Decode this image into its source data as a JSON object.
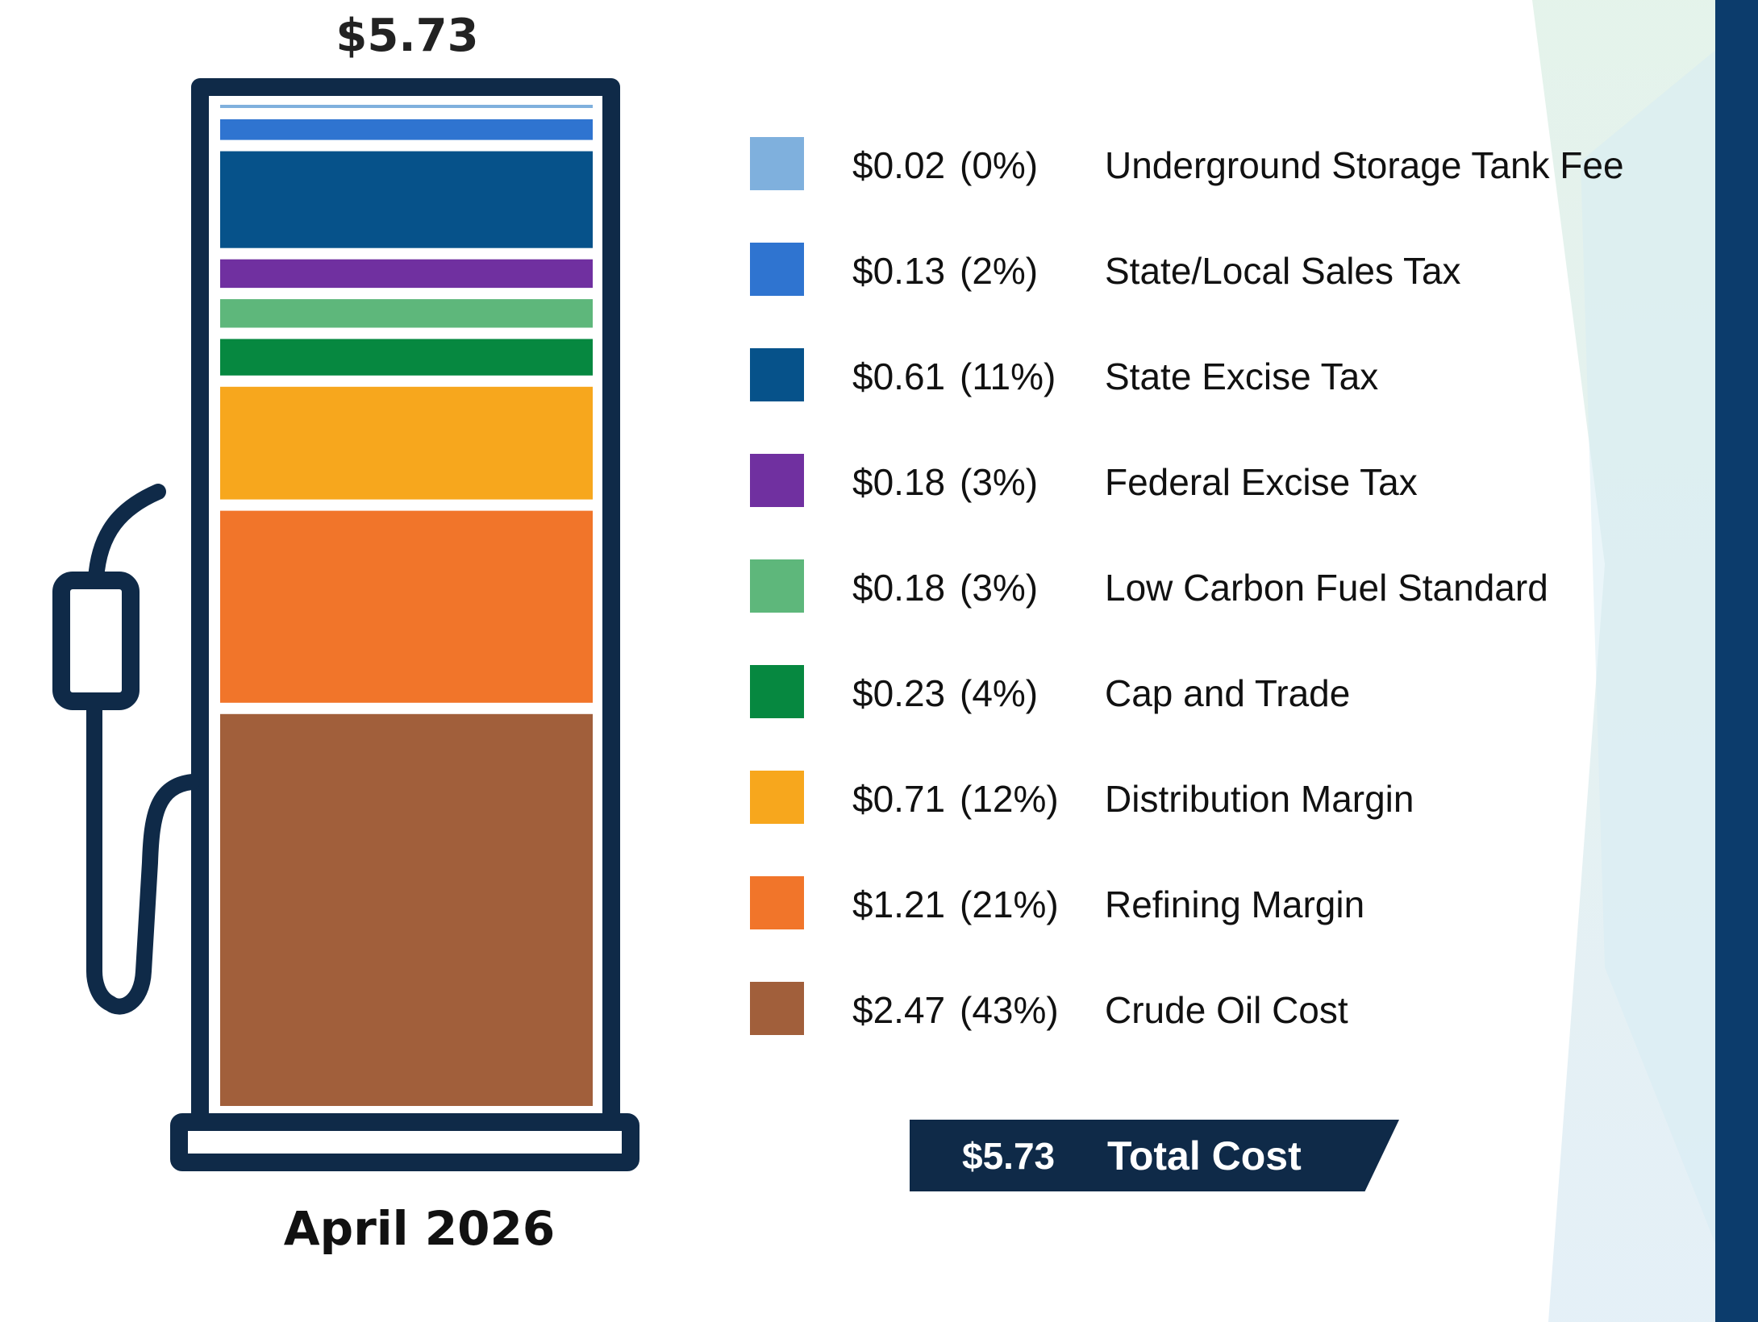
{
  "chart_data": {
    "type": "bar",
    "title": "$5.73",
    "period_label": "April 2026",
    "total": {
      "value": "$5.73",
      "label": "Total Cost"
    },
    "categories": [
      "Underground Storage Tank Fee",
      "State/Local Sales Tax",
      "State Excise Tax",
      "Federal Excise Tax",
      "Low Carbon Fuel Standard",
      "Cap and Trade",
      "Distribution Margin",
      "Refining Margin",
      "Crude Oil Cost"
    ],
    "values": [
      0.02,
      0.13,
      0.61,
      0.18,
      0.18,
      0.23,
      0.71,
      1.21,
      2.47
    ],
    "series": [
      {
        "category": "Underground Storage Tank Fee",
        "value": 0.02,
        "value_label": "$0.02",
        "pct_label": "(0%)",
        "color": "#7fb0dd"
      },
      {
        "category": "State/Local Sales Tax",
        "value": 0.13,
        "value_label": "$0.13",
        "pct_label": "(2%)",
        "color": "#2f74d0"
      },
      {
        "category": "State Excise Tax",
        "value": 0.61,
        "value_label": "$0.61",
        "pct_label": "(11%)",
        "color": "#06528a"
      },
      {
        "category": "Federal Excise Tax",
        "value": 0.18,
        "value_label": "$0.18",
        "pct_label": "(3%)",
        "color": "#7030a0"
      },
      {
        "category": "Low Carbon Fuel Standard",
        "value": 0.18,
        "value_label": "$0.18",
        "pct_label": "(3%)",
        "color": "#5eb77b"
      },
      {
        "category": "Cap and Trade",
        "value": 0.23,
        "value_label": "$0.23",
        "pct_label": "(4%)",
        "color": "#068840"
      },
      {
        "category": "Distribution Margin",
        "value": 0.71,
        "value_label": "$0.71",
        "pct_label": "(12%)",
        "color": "#f7a71d"
      },
      {
        "category": "Refining Margin",
        "value": 1.21,
        "value_label": "$1.21",
        "pct_label": "(21%)",
        "color": "#f1752a"
      },
      {
        "category": "Crude Oil Cost",
        "value": 2.47,
        "value_label": "$2.47",
        "pct_label": "(43%)",
        "color": "#a15f3b"
      }
    ],
    "stack_order_bottom_to_top": [
      "Crude Oil Cost",
      "Refining Margin",
      "Distribution Margin",
      "Cap and Trade",
      "Low Carbon Fuel Standard",
      "Federal Excise Tax",
      "State Excise Tax",
      "State/Local Sales Tax",
      "Underground Storage Tank Fee"
    ],
    "legend_position": "right",
    "grid": false
  },
  "colors": {
    "pump_outline": "#0f2a48",
    "right_bar": "#0c3c6c",
    "banner": "#0f2a48"
  }
}
